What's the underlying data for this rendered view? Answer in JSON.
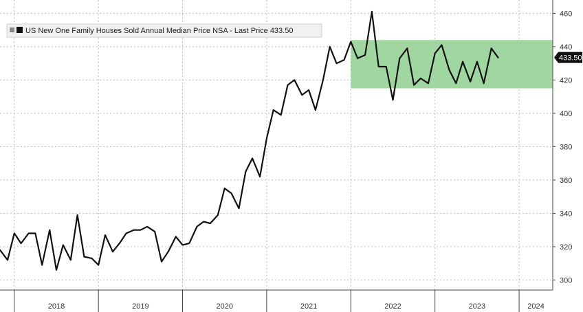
{
  "chart_data": {
    "type": "line",
    "legend_text": "US New One Family Houses Sold Annual Median Price NSA - Last Price 433.50",
    "last_value_label": "433.50",
    "ylim": [
      294,
      468
    ],
    "y_ticks": [
      300,
      320,
      340,
      360,
      380,
      400,
      420,
      440,
      460
    ],
    "x_range": [
      2017.83,
      2024.4
    ],
    "year_labels": [
      {
        "label": "2018",
        "x": 2018.5
      },
      {
        "label": "2019",
        "x": 2019.5
      },
      {
        "label": "2020",
        "x": 2020.5
      },
      {
        "label": "2021",
        "x": 2021.5
      },
      {
        "label": "2022",
        "x": 2022.5
      },
      {
        "label": "2023",
        "x": 2023.5
      },
      {
        "label": "2024",
        "x": 2024.2
      }
    ],
    "year_separators": [
      2018.0,
      2019.0,
      2020.0,
      2021.0,
      2022.0,
      2023.0,
      2024.0
    ],
    "range_band": {
      "x_start": 2022.0,
      "x_end": 2024.4,
      "y_low": 415,
      "y_high": 444,
      "color": "#8fd08f"
    },
    "series": [
      {
        "color": "#111111",
        "points": [
          [
            2017.83,
            318
          ],
          [
            2017.92,
            312
          ],
          [
            2018.0,
            328
          ],
          [
            2018.08,
            322
          ],
          [
            2018.17,
            328
          ],
          [
            2018.25,
            328
          ],
          [
            2018.33,
            309
          ],
          [
            2018.42,
            330
          ],
          [
            2018.5,
            306
          ],
          [
            2018.58,
            321
          ],
          [
            2018.67,
            312
          ],
          [
            2018.75,
            339
          ],
          [
            2018.83,
            314
          ],
          [
            2018.92,
            313
          ],
          [
            2019.0,
            309
          ],
          [
            2019.08,
            327
          ],
          [
            2019.17,
            317
          ],
          [
            2019.25,
            322
          ],
          [
            2019.33,
            328
          ],
          [
            2019.42,
            330
          ],
          [
            2019.5,
            330
          ],
          [
            2019.58,
            332
          ],
          [
            2019.67,
            329
          ],
          [
            2019.75,
            311
          ],
          [
            2019.83,
            317
          ],
          [
            2019.92,
            326
          ],
          [
            2020.0,
            321
          ],
          [
            2020.08,
            322
          ],
          [
            2020.17,
            332
          ],
          [
            2020.25,
            335
          ],
          [
            2020.33,
            334
          ],
          [
            2020.42,
            339
          ],
          [
            2020.5,
            355
          ],
          [
            2020.58,
            352
          ],
          [
            2020.67,
            343
          ],
          [
            2020.75,
            365
          ],
          [
            2020.83,
            373
          ],
          [
            2020.92,
            362
          ],
          [
            2021.0,
            385
          ],
          [
            2021.08,
            402
          ],
          [
            2021.17,
            399
          ],
          [
            2021.25,
            417
          ],
          [
            2021.33,
            420
          ],
          [
            2021.42,
            411
          ],
          [
            2021.5,
            414
          ],
          [
            2021.58,
            402
          ],
          [
            2021.67,
            420
          ],
          [
            2021.75,
            440
          ],
          [
            2021.83,
            430
          ],
          [
            2021.92,
            432
          ],
          [
            2022.0,
            443
          ],
          [
            2022.08,
            433
          ],
          [
            2022.17,
            435
          ],
          [
            2022.25,
            461
          ],
          [
            2022.33,
            428
          ],
          [
            2022.42,
            428
          ],
          [
            2022.5,
            408
          ],
          [
            2022.58,
            433
          ],
          [
            2022.67,
            439
          ],
          [
            2022.75,
            417
          ],
          [
            2022.83,
            421
          ],
          [
            2022.92,
            418
          ],
          [
            2023.0,
            436
          ],
          [
            2023.08,
            441
          ],
          [
            2023.17,
            426
          ],
          [
            2023.25,
            418
          ],
          [
            2023.33,
            431
          ],
          [
            2023.42,
            419
          ],
          [
            2023.5,
            431
          ],
          [
            2023.58,
            418
          ],
          [
            2023.67,
            439
          ],
          [
            2023.75,
            433.5
          ]
        ]
      }
    ],
    "grid": true,
    "legend_position": "top-left"
  }
}
